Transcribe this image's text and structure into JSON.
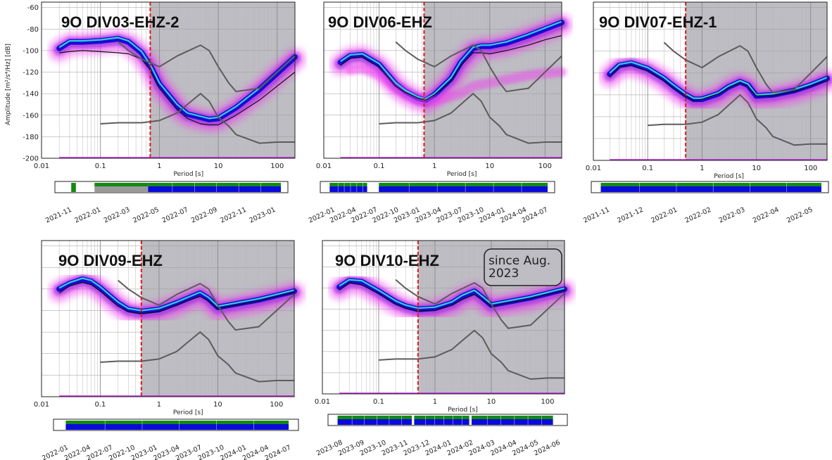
{
  "y_axis_label": "Amplitude [m²/s⁴/Hz] [dB]",
  "x_axis_label": "Period [s]",
  "x_ticks": [
    "0.01",
    "0.1",
    "1",
    "10",
    "100"
  ],
  "y_ticks": [
    "-60",
    "-80",
    "-100",
    "-120",
    "-140",
    "-160",
    "-180",
    "-200"
  ],
  "colors": {
    "shade": "#bdbdc3",
    "cutoff": "#e01818",
    "model": "#5c5c5c",
    "pdf_outer": "#f040f0",
    "pdf_core": "#5c20e0",
    "pdf_dense": "#0000d0",
    "mode": "#30d0e0",
    "mean": "#101010",
    "avail_green": "#138a13",
    "avail_blue": "#0a0adc",
    "avail_gray": "#9a9a9a"
  },
  "chart_data": [
    {
      "type": "line",
      "title": "9O DIV03-EHZ-2",
      "period_cutoff": 0.7,
      "xlim": [
        0.01,
        200
      ],
      "ylim": [
        -200,
        -55
      ],
      "series": [
        {
          "x": [
            0.02,
            0.03,
            0.05,
            0.1,
            0.2,
            0.3,
            0.5,
            0.7,
            1,
            2,
            3,
            5,
            7,
            10,
            20,
            50,
            100,
            200
          ],
          "values": [
            -97,
            -91,
            -91,
            -90,
            -88,
            -91,
            -101,
            -113,
            -130,
            -150,
            -158,
            -161,
            -163,
            -162,
            -152,
            -135,
            -120,
            -105
          ]
        },
        {
          "x": [
            0.02,
            0.03,
            0.05,
            0.1,
            0.2,
            0.3,
            0.5,
            0.7,
            1,
            2,
            3,
            5,
            7,
            10,
            20,
            50,
            100,
            200
          ],
          "values": [
            -102,
            -101,
            -100,
            -101,
            -102,
            -103,
            -108,
            -118,
            -135,
            -155,
            -163,
            -168,
            -169,
            -169,
            -160,
            -146,
            -133,
            -120
          ]
        }
      ],
      "nlnm": {
        "x": [
          0.1,
          0.2,
          0.3,
          0.5,
          1,
          2,
          3,
          5,
          7,
          10,
          15,
          20,
          50,
          100,
          200
        ],
        "values": [
          -168,
          -167,
          -167,
          -167,
          -165,
          -158,
          -150,
          -140,
          -147,
          -162,
          -170,
          -178,
          -186,
          -185,
          -185
        ]
      },
      "nhnm": {
        "x": [
          0.2,
          0.3,
          0.5,
          1,
          2,
          5,
          7,
          10,
          15,
          20,
          50,
          100,
          200
        ],
        "values": [
          -92,
          -100,
          -108,
          -115,
          -105,
          -95,
          -100,
          -115,
          -130,
          -138,
          -135,
          -120,
          -105
        ]
      },
      "timeline": {
        "labels": [
          "2021-11",
          "2022-01",
          "2022-03",
          "2022-05",
          "2022-07",
          "2022-09",
          "2022-11",
          "2023-01"
        ],
        "segments": [
          {
            "start": 0.07,
            "end": 0.09,
            "status": "green"
          },
          {
            "start": 0.17,
            "end": 0.4,
            "status": "gray"
          },
          {
            "start": 0.4,
            "end": 0.97,
            "status": "blue"
          }
        ]
      }
    },
    {
      "type": "line",
      "title": "9O DIV06-EHZ",
      "period_cutoff": 0.65,
      "xlim": [
        0.01,
        200
      ],
      "ylim": [
        -200,
        -55
      ],
      "series": [
        {
          "x": [
            0.02,
            0.03,
            0.05,
            0.1,
            0.2,
            0.3,
            0.5,
            0.7,
            1,
            2,
            3,
            5,
            7,
            10,
            20,
            50,
            100,
            200
          ],
          "values": [
            -110,
            -104,
            -103,
            -112,
            -130,
            -137,
            -143,
            -145,
            -140,
            -125,
            -110,
            -97,
            -95,
            -95,
            -92,
            -85,
            -79,
            -73
          ]
        },
        {
          "x": [
            0.02,
            0.03,
            0.05,
            0.1,
            0.2,
            0.3,
            0.5,
            0.7,
            1,
            2,
            3,
            5,
            7,
            10,
            20,
            50,
            100,
            200
          ],
          "values": [
            -114,
            -107,
            -106,
            -115,
            -133,
            -139,
            -144,
            -146,
            -141,
            -128,
            -114,
            -102,
            -102,
            -103,
            -100,
            -95,
            -90,
            -86
          ]
        },
        {
          "x": [
            0.03,
            0.05,
            0.1,
            0.2,
            0.5,
            1,
            3,
            5,
            10,
            20,
            50,
            100,
            200
          ],
          "values": [
            -118,
            -117,
            -122,
            -135,
            -145,
            -147,
            -140,
            -133,
            -130,
            -127,
            -123,
            -121,
            -120
          ]
        }
      ],
      "nlnm": {
        "x": [
          0.1,
          0.2,
          0.3,
          0.5,
          1,
          2,
          3,
          5,
          7,
          10,
          15,
          20,
          50,
          100,
          200
        ],
        "values": [
          -168,
          -167,
          -167,
          -167,
          -165,
          -158,
          -150,
          -140,
          -147,
          -162,
          -170,
          -178,
          -186,
          -185,
          -185
        ]
      },
      "nhnm": {
        "x": [
          0.2,
          0.3,
          0.5,
          1,
          2,
          5,
          7,
          10,
          15,
          20,
          50,
          100,
          200
        ],
        "values": [
          -92,
          -100,
          -108,
          -115,
          -105,
          -95,
          -100,
          -115,
          -130,
          -138,
          -135,
          -120,
          -105
        ]
      },
      "timeline": {
        "labels": [
          "2022-01",
          "2022-04",
          "2022-07",
          "2022-10",
          "2023-01",
          "2023-04",
          "2023-07",
          "2023-10",
          "2024-01",
          "2024-04",
          "2024-07"
        ],
        "segments": [
          {
            "start": 0.04,
            "end": 0.2,
            "status": "blue"
          },
          {
            "start": 0.25,
            "end": 0.97,
            "status": "blue"
          }
        ]
      }
    },
    {
      "type": "line",
      "title": "9O DIV07-EHZ-1",
      "period_cutoff": 0.5,
      "xlim": [
        0.01,
        200
      ],
      "ylim": [
        -200,
        -55
      ],
      "series": [
        {
          "x": [
            0.02,
            0.03,
            0.05,
            0.1,
            0.2,
            0.3,
            0.5,
            0.7,
            1,
            2,
            3,
            5,
            7,
            10,
            20,
            50,
            100,
            200
          ],
          "values": [
            -120,
            -112,
            -110,
            -115,
            -124,
            -131,
            -139,
            -143,
            -143,
            -138,
            -132,
            -127,
            -130,
            -140,
            -139,
            -135,
            -130,
            -124
          ]
        },
        {
          "x": [
            0.02,
            0.03,
            0.05,
            0.1,
            0.2,
            0.3,
            0.5,
            0.7,
            1,
            2,
            3,
            5,
            7,
            10,
            20,
            50,
            100,
            200
          ],
          "values": [
            -124,
            -114,
            -113,
            -118,
            -127,
            -134,
            -141,
            -145,
            -144,
            -139,
            -134,
            -129,
            -132,
            -141,
            -141,
            -137,
            -132,
            -127
          ]
        }
      ],
      "nlnm": {
        "x": [
          0.1,
          0.2,
          0.3,
          0.5,
          1,
          2,
          3,
          5,
          7,
          10,
          15,
          20,
          50,
          100,
          200
        ],
        "values": [
          -168,
          -167,
          -167,
          -167,
          -165,
          -158,
          -150,
          -140,
          -147,
          -162,
          -170,
          -178,
          -186,
          -185,
          -185
        ]
      },
      "nhnm": {
        "x": [
          0.2,
          0.3,
          0.5,
          1,
          2,
          5,
          7,
          10,
          15,
          20,
          50,
          100,
          200
        ],
        "values": [
          -92,
          -100,
          -108,
          -115,
          -105,
          -95,
          -100,
          -115,
          -130,
          -138,
          -135,
          -120,
          -105
        ]
      },
      "timeline": {
        "labels": [
          "2021-11",
          "2021-12",
          "2022-01",
          "2022-02",
          "2022-03",
          "2022-04",
          "2022-05"
        ],
        "segments": [
          {
            "start": 0.04,
            "end": 0.97,
            "status": "blue"
          }
        ]
      }
    },
    {
      "type": "line",
      "title": "9O DIV09-EHZ",
      "period_cutoff": 0.5,
      "xlim": [
        0.01,
        200
      ],
      "ylim": [
        -200,
        -55
      ],
      "series": [
        {
          "x": [
            0.02,
            0.03,
            0.05,
            0.07,
            0.1,
            0.2,
            0.3,
            0.5,
            1,
            2,
            3,
            5,
            7,
            10,
            20,
            50,
            100,
            200
          ],
          "values": [
            -99,
            -94,
            -90,
            -92,
            -98,
            -112,
            -118,
            -120,
            -118,
            -112,
            -108,
            -103,
            -108,
            -116,
            -113,
            -109,
            -105,
            -101
          ]
        },
        {
          "x": [
            0.02,
            0.03,
            0.05,
            0.07,
            0.1,
            0.2,
            0.3,
            0.5,
            1,
            2,
            3,
            5,
            7,
            10,
            20,
            50,
            100,
            200
          ],
          "values": [
            -104,
            -97,
            -94,
            -96,
            -102,
            -116,
            -121,
            -123,
            -121,
            -115,
            -111,
            -107,
            -111,
            -118,
            -115,
            -111,
            -107,
            -103
          ]
        }
      ],
      "nlnm": {
        "x": [
          0.1,
          0.2,
          0.3,
          0.5,
          1,
          2,
          3,
          5,
          7,
          10,
          15,
          20,
          50,
          100,
          200
        ],
        "values": [
          -168,
          -167,
          -167,
          -167,
          -165,
          -158,
          -150,
          -140,
          -147,
          -162,
          -170,
          -178,
          -186,
          -185,
          -185
        ]
      },
      "nhnm": {
        "x": [
          0.2,
          0.3,
          0.5,
          1,
          2,
          5,
          7,
          10,
          15,
          20,
          50,
          100,
          200
        ],
        "values": [
          -92,
          -100,
          -108,
          -115,
          -105,
          -95,
          -100,
          -115,
          -130,
          -138,
          -135,
          -120,
          -105
        ]
      },
      "timeline": {
        "labels": [
          "2022-01",
          "2022-04",
          "2022-07",
          "2022-10",
          "2023-01",
          "2023-04",
          "2023-07",
          "2023-10",
          "2024-01",
          "2024-04",
          "2024-07"
        ],
        "segments": [
          {
            "start": 0.05,
            "end": 0.96,
            "status": "blue"
          }
        ]
      }
    },
    {
      "type": "line",
      "title": "9O DIV10-EHZ",
      "annotation": "since Aug. 2023",
      "period_cutoff": 0.5,
      "xlim": [
        0.01,
        200
      ],
      "ylim": [
        -200,
        -55
      ],
      "series": [
        {
          "x": [
            0.02,
            0.03,
            0.05,
            0.1,
            0.2,
            0.3,
            0.5,
            1,
            2,
            3,
            5,
            7,
            10,
            20,
            50,
            100,
            200
          ],
          "values": [
            -98,
            -92,
            -93,
            -102,
            -112,
            -116,
            -119,
            -118,
            -113,
            -107,
            -102,
            -108,
            -115,
            -112,
            -108,
            -104,
            -100
          ]
        },
        {
          "x": [
            0.02,
            0.03,
            0.05,
            0.1,
            0.2,
            0.3,
            0.5,
            1,
            2,
            3,
            5,
            7,
            10,
            20,
            50,
            100,
            200
          ],
          "values": [
            -102,
            -95,
            -97,
            -105,
            -115,
            -119,
            -122,
            -121,
            -116,
            -111,
            -106,
            -111,
            -117,
            -114,
            -110,
            -106,
            -102
          ]
        }
      ],
      "nlnm": {
        "x": [
          0.1,
          0.2,
          0.3,
          0.5,
          1,
          2,
          3,
          5,
          7,
          10,
          15,
          20,
          50,
          100,
          200
        ],
        "values": [
          -168,
          -167,
          -167,
          -167,
          -165,
          -158,
          -150,
          -140,
          -147,
          -162,
          -170,
          -178,
          -186,
          -185,
          -185
        ]
      },
      "nhnm": {
        "x": [
          0.2,
          0.3,
          0.5,
          1,
          2,
          5,
          7,
          10,
          15,
          20,
          50,
          100,
          200
        ],
        "values": [
          -92,
          -100,
          -108,
          -115,
          -105,
          -95,
          -100,
          -115,
          -130,
          -138,
          -135,
          -120,
          -105
        ]
      },
      "timeline": {
        "labels": [
          "2023-08",
          "2023-09",
          "2023-10",
          "2023-11",
          "2023-12",
          "2024-01",
          "2024-02",
          "2024-03",
          "2024-04",
          "2024-05",
          "2024-06"
        ],
        "segments": [
          {
            "start": 0.04,
            "end": 0.35,
            "status": "blue"
          },
          {
            "start": 0.36,
            "end": 0.59,
            "status": "blue"
          },
          {
            "start": 0.6,
            "end": 0.94,
            "status": "blue"
          }
        ]
      }
    }
  ]
}
